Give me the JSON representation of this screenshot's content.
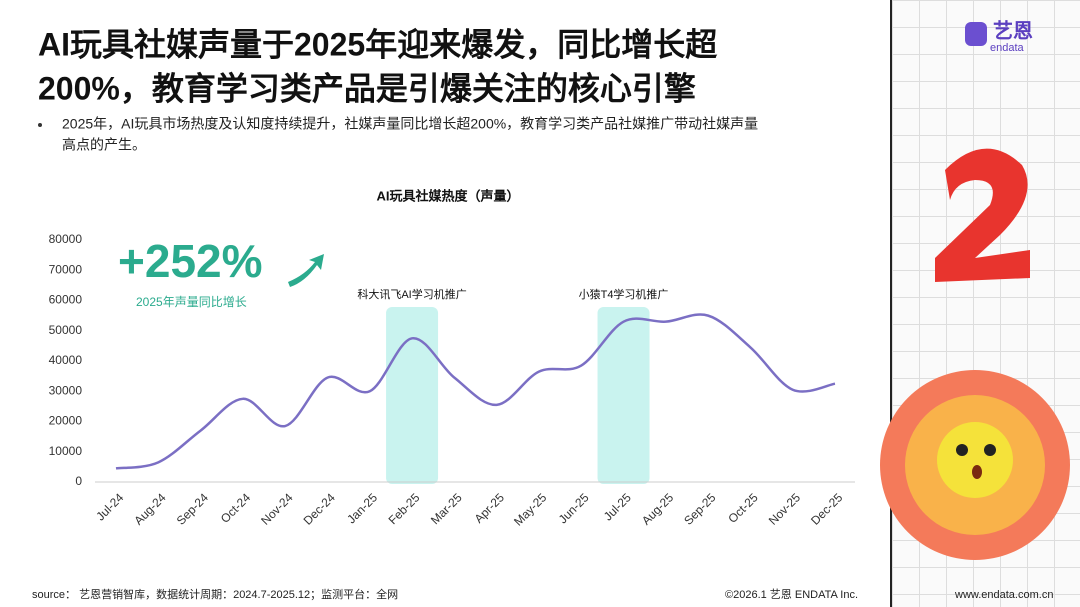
{
  "header": {
    "title_lines": [
      "AI玩具社媒声量于2025年迎来爆发，同比增长超",
      "200%，教育学习类产品是引爆关注的核心引擎"
    ],
    "bullet_lines": [
      "2025年，AI玩具市场热度及认知度持续提升，社媒声量同比增长超200%，教育学习类产品社媒推广带动社媒声量",
      "高点的产生。"
    ]
  },
  "logo": {
    "name": "艺恩",
    "sub": "endata"
  },
  "chart_data": {
    "type": "line",
    "title": "AI玩具社媒热度（声量）",
    "categories": [
      "Jul-24",
      "Aug-24",
      "Sep-24",
      "Oct-24",
      "Nov-24",
      "Dec-24",
      "Jan-25",
      "Feb-25",
      "Mar-25",
      "Apr-25",
      "May-25",
      "Jun-25",
      "Jul-25",
      "Aug-25",
      "Sep-25",
      "Oct-25",
      "Nov-25",
      "Dec-25"
    ],
    "values": [
      4500,
      6500,
      17000,
      27500,
      18500,
      34500,
      30000,
      47500,
      34500,
      25500,
      36500,
      38500,
      53000,
      53000,
      55000,
      44500,
      30500,
      32500
    ],
    "color": "#7b6fc4",
    "ylim": [
      0,
      80000
    ],
    "yticks": [
      0,
      10000,
      20000,
      30000,
      40000,
      50000,
      60000,
      70000,
      80000
    ],
    "grid": false,
    "smooth": true,
    "highlight_color": "#c9f3ef",
    "highlights": [
      {
        "category": "Feb-25",
        "label": "科大讯飞AI学习机推广"
      },
      {
        "category": "Jul-25",
        "label": "小猿T4学习机推广"
      }
    ],
    "callout": {
      "value_text": "+252%",
      "caption": "2025年声量同比增长",
      "color": "#2bab8e"
    }
  },
  "footer": {
    "source": "source： 艺恩营销智库，数据统计周期：2024.7-2025.12；监测平台：全网",
    "copyright": "©2026.1 艺恩 ENDATA Inc.",
    "url": "www.endata.com.cn"
  }
}
